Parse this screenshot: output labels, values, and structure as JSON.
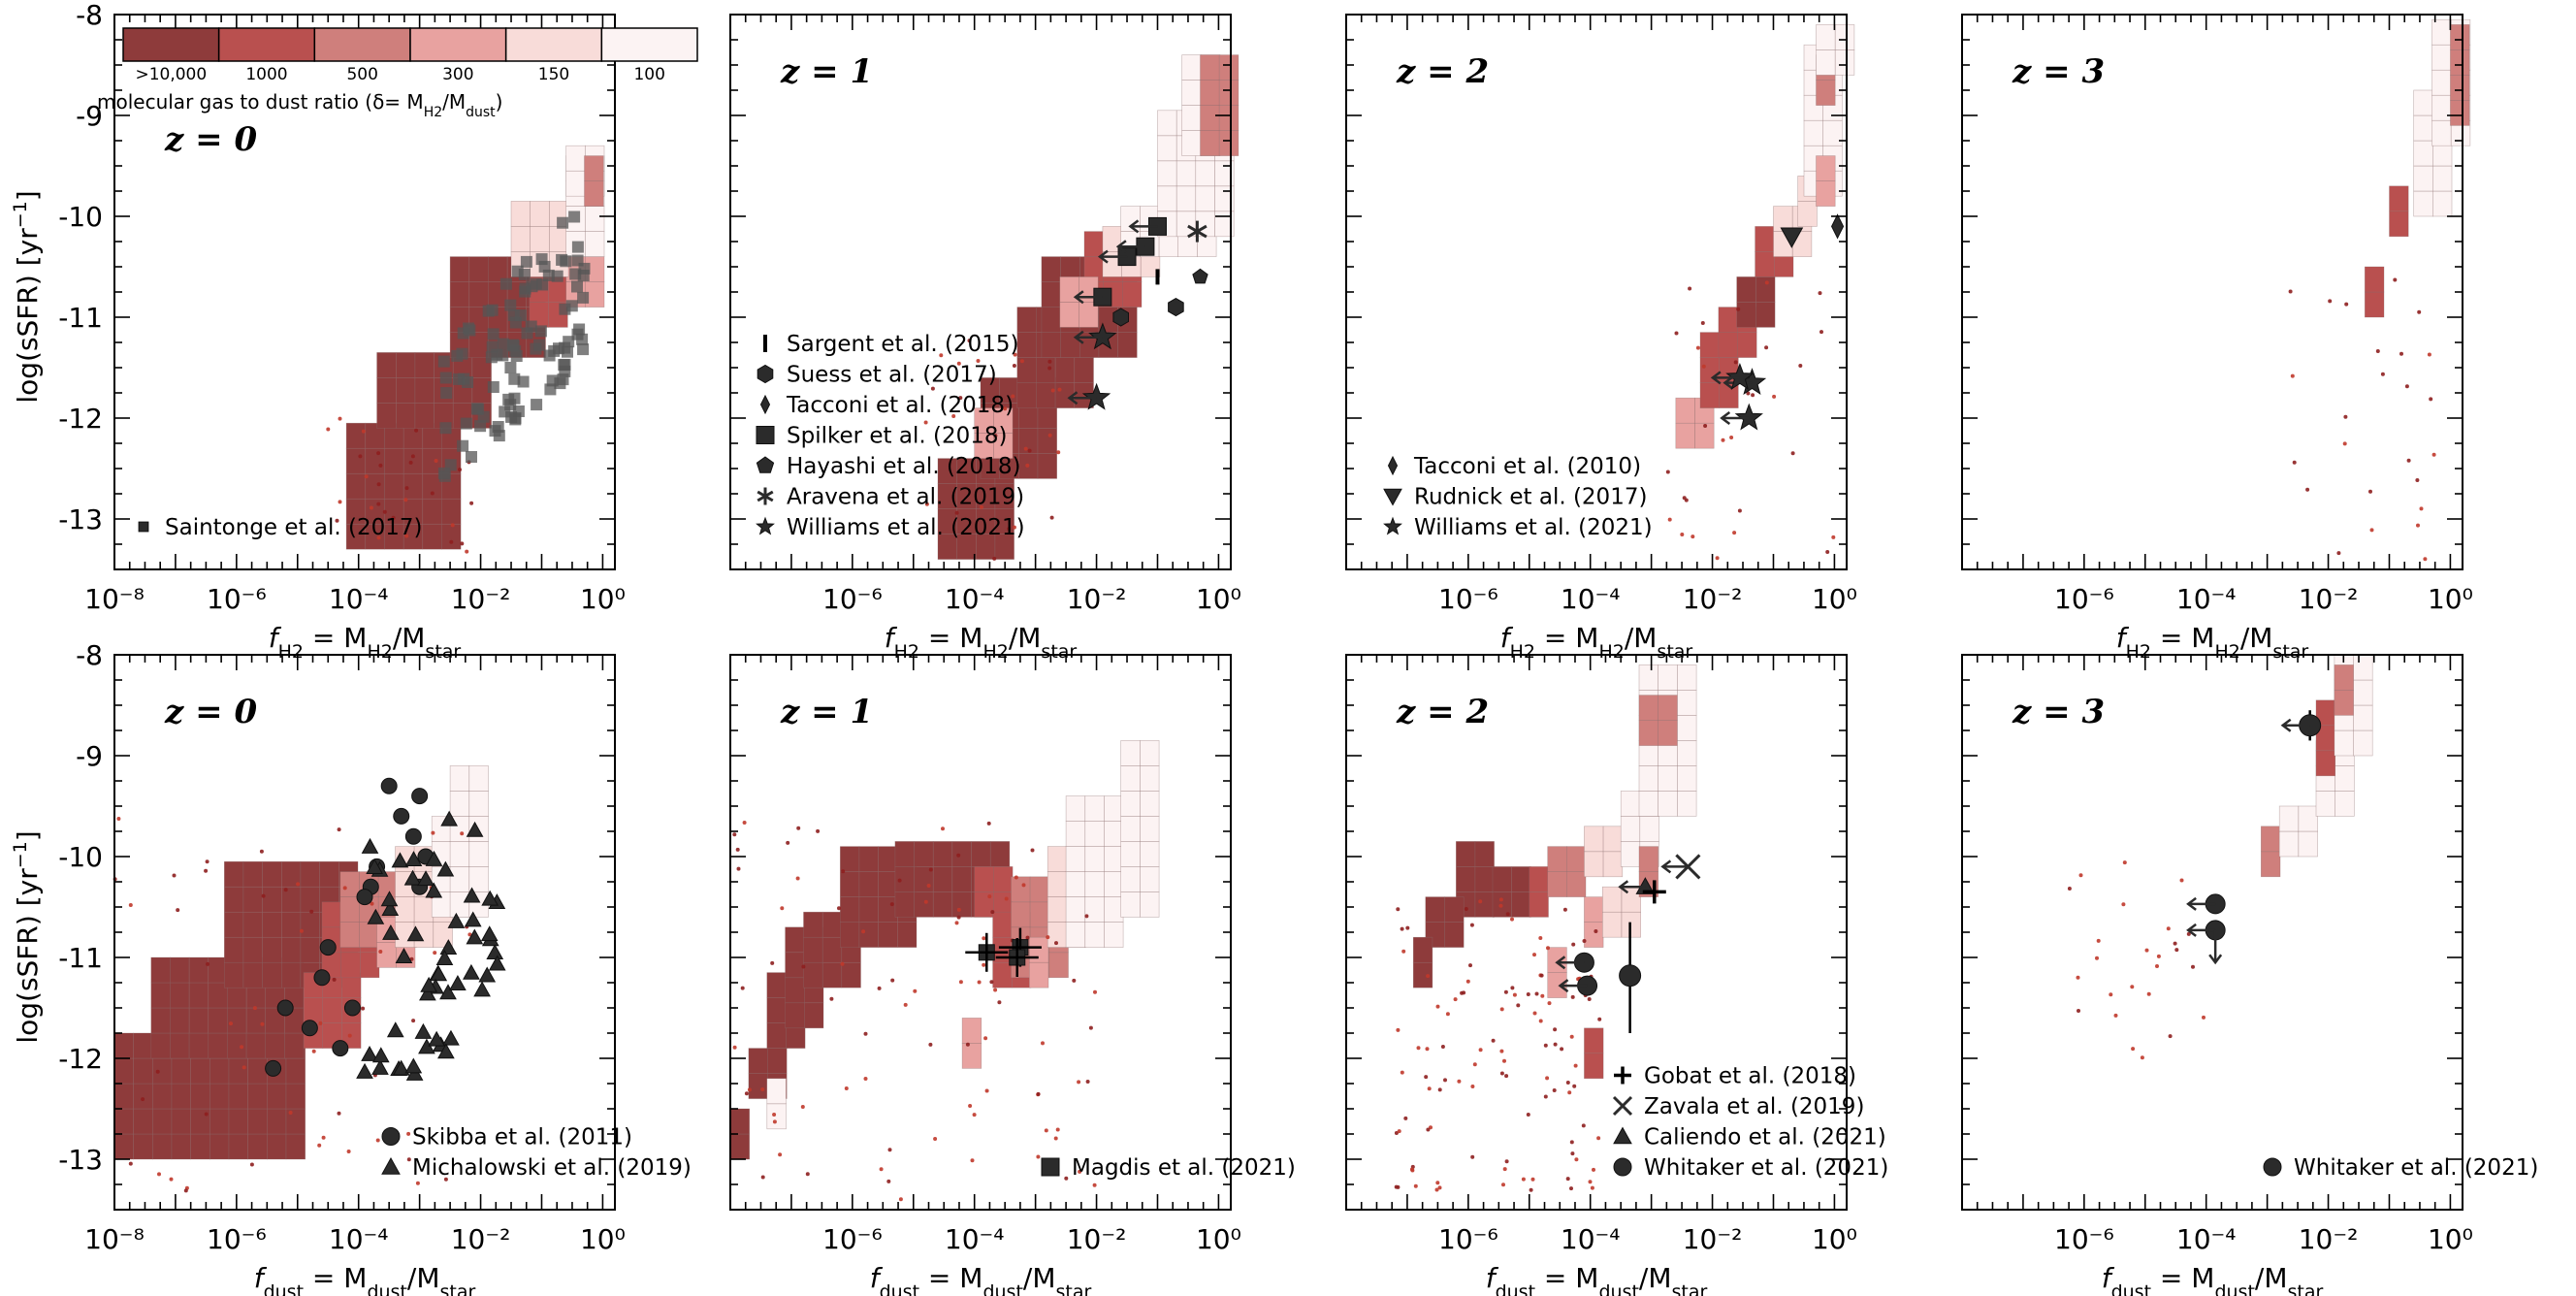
{
  "colorbar": {
    "title_prefix": "molecular gas to dust ratio (δ= M",
    "title_sub1": "H2",
    "title_mid": "/M",
    "title_sub2": "dust",
    "title_suffix": ")",
    "labels": [
      ">10,000",
      "1000",
      "500",
      "300",
      "150",
      "100"
    ],
    "colors": [
      "#8e3b3b",
      "#b9504f",
      "#cf7f7c",
      "#e8a2a0",
      "#f8dcd9",
      "#fcf3f3"
    ]
  },
  "yaxis": {
    "label_main": "log(sSFR) [yr",
    "label_sup": "−1",
    "label_end": "]",
    "ticks": [
      -8,
      -9,
      -10,
      -11,
      -12,
      -13
    ],
    "tick_labels": [
      "-8",
      "-9",
      "-10",
      "-11",
      "-12",
      "-13"
    ]
  },
  "xaxis_top": {
    "label_sym": "f",
    "label_sub": "H2",
    "label_eq": " = M",
    "label_sub2": "H2",
    "label_slash": "/M",
    "label_sub3": "star"
  },
  "xaxis_bottom": {
    "label_sym": "f",
    "label_sub": "dust",
    "label_eq": " = M",
    "label_sub2": "dust",
    "label_slash": "/M",
    "label_sub3": "star"
  },
  "chart_data": [
    {
      "type": "heatmap",
      "panel": "top-z0",
      "z_label": "z = 0",
      "xscale": "log",
      "xlim_log10": [
        -8,
        0.2
      ],
      "ylim": [
        -13.5,
        -8
      ],
      "x_ticks_log10": [
        -8,
        -6,
        -4,
        -2,
        0
      ],
      "legend": [
        {
          "marker": "square-small",
          "label": "Saintonge et al. (2017)"
        }
      ]
    },
    {
      "type": "heatmap",
      "panel": "top-z1",
      "z_label": "z = 1",
      "xscale": "log",
      "xlim_log10": [
        -8,
        0.2
      ],
      "ylim": [
        -13.5,
        -8
      ],
      "x_ticks_log10": [
        -6,
        -4,
        -2,
        0
      ],
      "legend": [
        {
          "marker": "bar",
          "label": "Sargent et al. (2015)"
        },
        {
          "marker": "hexagon",
          "label": "Suess et al. (2017)"
        },
        {
          "marker": "thin-diamond",
          "label": "Tacconi et al. (2018)"
        },
        {
          "marker": "square",
          "label": "Spilker et al. (2018)"
        },
        {
          "marker": "pentagon",
          "label": "Hayashi et al. (2018)"
        },
        {
          "marker": "asterisk",
          "label": "Aravena et al. (2019)"
        },
        {
          "marker": "star",
          "label": "Williams et al. (2021)"
        }
      ]
    },
    {
      "type": "heatmap",
      "panel": "top-z2",
      "z_label": "z = 2",
      "xscale": "log",
      "xlim_log10": [
        -8,
        0.2
      ],
      "ylim": [
        -13.5,
        -8
      ],
      "x_ticks_log10": [
        -6,
        -4,
        -2,
        0
      ],
      "legend": [
        {
          "marker": "thin-diamond",
          "label": "Tacconi et al. (2010)"
        },
        {
          "marker": "triangle-down",
          "label": "Rudnick et al. (2017)"
        },
        {
          "marker": "star",
          "label": "Williams et al. (2021)"
        }
      ]
    },
    {
      "type": "heatmap",
      "panel": "top-z3",
      "z_label": "z = 3",
      "xscale": "log",
      "xlim_log10": [
        -8,
        0.2
      ],
      "ylim": [
        -13.5,
        -8
      ],
      "x_ticks_log10": [
        -6,
        -4,
        -2,
        0
      ],
      "legend": []
    },
    {
      "type": "heatmap",
      "panel": "bottom-z0",
      "z_label": "z = 0",
      "xscale": "log",
      "xlim_log10": [
        -8,
        0.2
      ],
      "ylim": [
        -13.5,
        -8
      ],
      "x_ticks_log10": [
        -8,
        -6,
        -4,
        -2,
        0
      ],
      "legend": [
        {
          "marker": "circle",
          "label": "Skibba et al. (2011)"
        },
        {
          "marker": "triangle",
          "label": "Michalowski et al. (2019)"
        }
      ]
    },
    {
      "type": "heatmap",
      "panel": "bottom-z1",
      "z_label": "z = 1",
      "xscale": "log",
      "xlim_log10": [
        -8,
        0.2
      ],
      "ylim": [
        -13.5,
        -8
      ],
      "x_ticks_log10": [
        -6,
        -4,
        -2,
        0
      ],
      "legend": [
        {
          "marker": "square",
          "label": "Magdis et al. (2021)"
        }
      ]
    },
    {
      "type": "heatmap",
      "panel": "bottom-z2",
      "z_label": "z = 2",
      "xscale": "log",
      "xlim_log10": [
        -8,
        0.2
      ],
      "ylim": [
        -13.5,
        -8
      ],
      "x_ticks_log10": [
        -6,
        -4,
        -2,
        0
      ],
      "legend": [
        {
          "marker": "plus",
          "label": "Gobat et al. (2018)"
        },
        {
          "marker": "cross",
          "label": "Zavala et al. (2019)"
        },
        {
          "marker": "triangle",
          "label": "Caliendo et al. (2021)"
        },
        {
          "marker": "circle",
          "label": "Whitaker et al. (2021)"
        }
      ]
    },
    {
      "type": "heatmap",
      "panel": "bottom-z3",
      "z_label": "z = 3",
      "xscale": "log",
      "xlim_log10": [
        -8,
        0.2
      ],
      "ylim": [
        -13.5,
        -8
      ],
      "x_ticks_log10": [
        -6,
        -4,
        -2,
        0
      ],
      "legend": [
        {
          "marker": "circle",
          "label": "Whitaker et al. (2021)"
        }
      ]
    }
  ]
}
